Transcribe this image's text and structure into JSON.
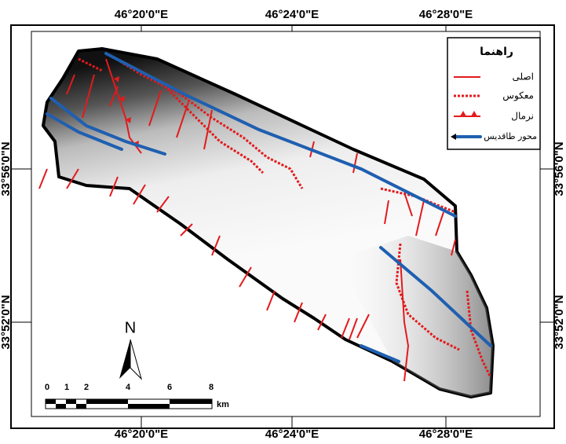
{
  "coordinates": {
    "top": [
      "46°20'0\"E",
      "46°24'0\"E",
      "46°28'0\"E"
    ],
    "bottom": [
      "46°20'0\"E",
      "46°24'0\"E",
      "46°28'0\"E"
    ],
    "left": [
      "33°56'0\"N",
      "33°52'0\"N"
    ],
    "right": [
      "33°56'0\"N",
      "33°52'0\"N"
    ]
  },
  "legend": {
    "title": "راهنما",
    "items": [
      "اصلی",
      "معکوس",
      "نرمال",
      "محور طاقدیس"
    ]
  },
  "scale_bar": {
    "labels": [
      0,
      1,
      2,
      4,
      6,
      8
    ],
    "unit": "km"
  },
  "north_arrow": "N"
}
